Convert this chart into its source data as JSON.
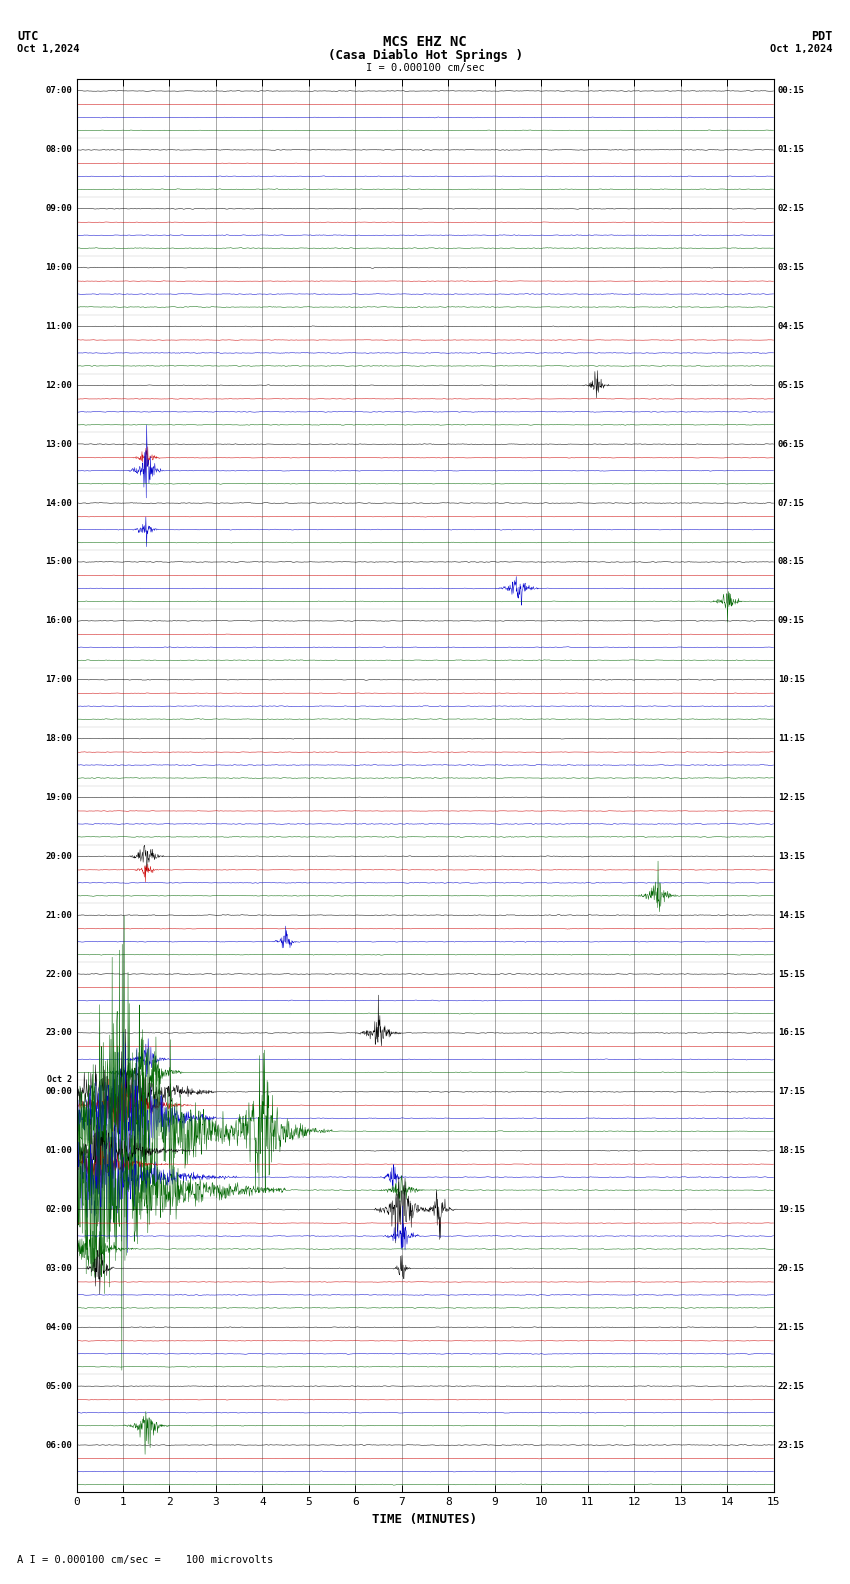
{
  "title_line1": "MCS EHZ NC",
  "title_line2": "(Casa Diablo Hot Springs )",
  "scale_label": "I = 0.000100 cm/sec",
  "utc_label": "UTC",
  "pdt_label": "PDT",
  "date_left": "Oct 1,2024",
  "date_right": "Oct 1,2024",
  "xlabel": "TIME (MINUTES)",
  "footer": "A I = 0.000100 cm/sec =    100 microvolts",
  "xlim": [
    0,
    15
  ],
  "xticks": [
    0,
    1,
    2,
    3,
    4,
    5,
    6,
    7,
    8,
    9,
    10,
    11,
    12,
    13,
    14,
    15
  ],
  "bg_color": "#ffffff",
  "trace_colors": [
    "#000000",
    "#cc0000",
    "#0000cc",
    "#006600"
  ],
  "row_start_utc": [
    "07:00",
    "08:00",
    "09:00",
    "10:00",
    "11:00",
    "12:00",
    "13:00",
    "14:00",
    "15:00",
    "16:00",
    "17:00",
    "18:00",
    "19:00",
    "20:00",
    "21:00",
    "22:00",
    "23:00",
    "00:00",
    "01:00",
    "02:00",
    "03:00",
    "04:00",
    "05:00",
    "06:00"
  ],
  "row_start_pdt": [
    "00:15",
    "01:15",
    "02:15",
    "03:15",
    "04:15",
    "05:15",
    "06:15",
    "07:15",
    "08:15",
    "09:15",
    "10:15",
    "11:15",
    "12:15",
    "13:15",
    "14:15",
    "15:15",
    "16:15",
    "17:15",
    "18:15",
    "19:15",
    "20:15",
    "21:15",
    "22:15",
    "23:15"
  ],
  "date_change_row": 17,
  "date_change_label": "Oct 2",
  "figsize": [
    8.5,
    15.84
  ],
  "dpi": 100
}
